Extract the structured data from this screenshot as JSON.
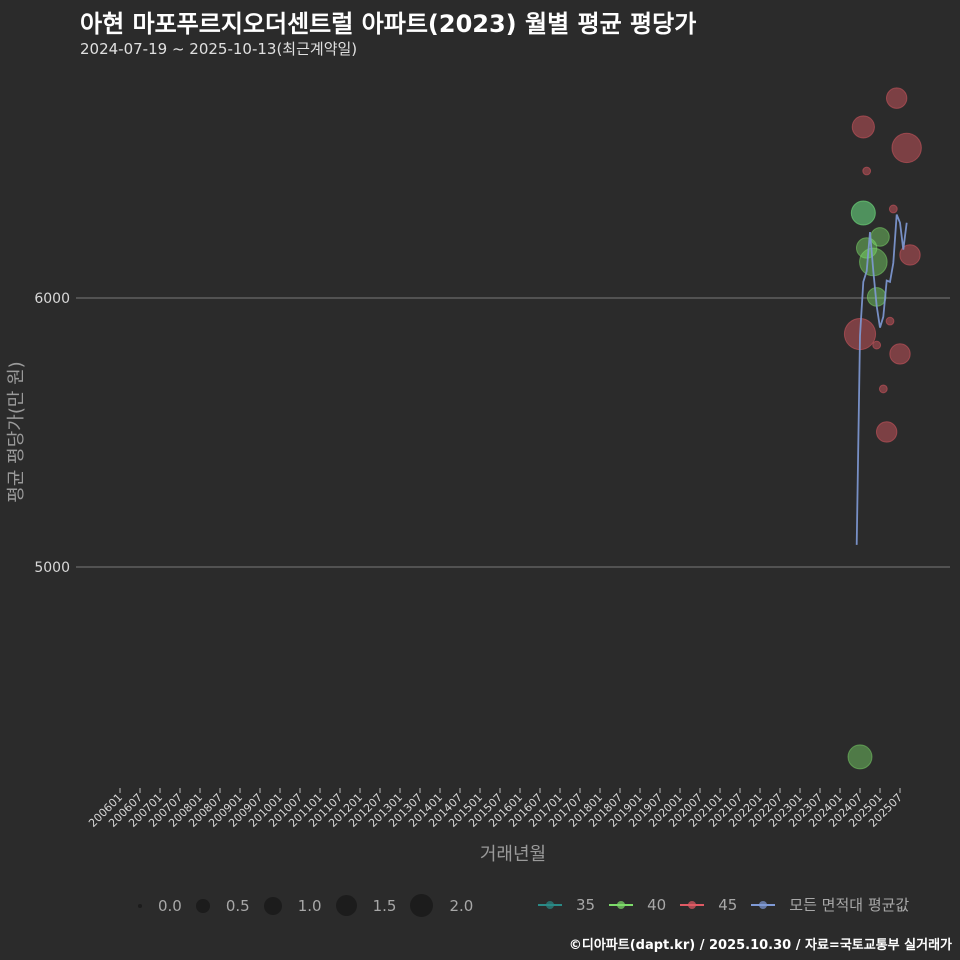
{
  "header": {
    "title": "아현 마포푸르지오더센트럴 아파트(2023) 월별 평균 평당가",
    "subtitle": "2024-07-19 ~ 2025-10-13(최근계약일)"
  },
  "axes": {
    "xlabel": "거래년월",
    "ylabel": "평균 평당가(만 원)"
  },
  "legend": {
    "size": [
      {
        "label": "0.0",
        "diameter": 4
      },
      {
        "label": "0.5",
        "diameter": 14
      },
      {
        "label": "1.0",
        "diameter": 18
      },
      {
        "label": "1.5",
        "diameter": 21
      },
      {
        "label": "2.0",
        "diameter": 23
      }
    ],
    "color": [
      {
        "label": "35",
        "color": "#2a8a86"
      },
      {
        "label": "40",
        "color": "#7ddc6a"
      },
      {
        "label": "45",
        "color": "#e05a64"
      },
      {
        "label": "모든 면적대 평균값",
        "color": "#7f9ad6"
      }
    ]
  },
  "footer": {
    "text": "©디아파트(dapt.kr) / 2025.10.30 / 자료=국토교통부 실거래가"
  },
  "chart_data": {
    "type": "scatter",
    "title": "아현 마포푸르지오더센트럴 아파트(2023) 월별 평균 평당가",
    "subtitle": "2024-07-19 ~ 2025-10-13(최근계약일)",
    "xlabel": "거래년월",
    "ylabel": "평균 평당가(만 원)",
    "x_ticks": [
      "200601",
      "200607",
      "200701",
      "200707",
      "200801",
      "200807",
      "200901",
      "200907",
      "201001",
      "201007",
      "201101",
      "201107",
      "201201",
      "201207",
      "201301",
      "201307",
      "201401",
      "201407",
      "201501",
      "201507",
      "201601",
      "201607",
      "201701",
      "201707",
      "201801",
      "201807",
      "201901",
      "201907",
      "202001",
      "202007",
      "202101",
      "202107",
      "202201",
      "202207",
      "202301",
      "202307",
      "202401",
      "202407",
      "202501",
      "202507"
    ],
    "y_ticks": [
      5000,
      6000
    ],
    "ylim": [
      4100,
      6870
    ],
    "grid": "horizontal",
    "legend_position": "bottom",
    "series": [
      {
        "name": "35",
        "color": "#2a8a86",
        "points": [
          {
            "x": "202408",
            "y": 6316,
            "size": 1.0
          }
        ]
      },
      {
        "name": "40",
        "color": "#7ddc6a",
        "points": [
          {
            "x": "202407",
            "y": 4294,
            "size": 1.0
          },
          {
            "x": "202408",
            "y": 6316,
            "size": 1.0
          },
          {
            "x": "202409",
            "y": 6186,
            "size": 0.8
          },
          {
            "x": "202411",
            "y": 6134,
            "size": 1.2
          },
          {
            "x": "202412",
            "y": 6004,
            "size": 0.7
          },
          {
            "x": "202501",
            "y": 6227,
            "size": 0.7
          }
        ]
      },
      {
        "name": "45",
        "color": "#e05a64",
        "points": [
          {
            "x": "202407",
            "y": 5866,
            "size": 1.4
          },
          {
            "x": "202408",
            "y": 6636,
            "size": 0.9
          },
          {
            "x": "202409",
            "y": 6472,
            "size": 0.1
          },
          {
            "x": "202412",
            "y": 5825,
            "size": 0.1
          },
          {
            "x": "202502",
            "y": 5662,
            "size": 0.1
          },
          {
            "x": "202503",
            "y": 5502,
            "size": 0.8
          },
          {
            "x": "202504",
            "y": 5914,
            "size": 0.1
          },
          {
            "x": "202505",
            "y": 6331,
            "size": 0.1
          },
          {
            "x": "202506",
            "y": 6743,
            "size": 0.8
          },
          {
            "x": "202507",
            "y": 5792,
            "size": 0.8
          },
          {
            "x": "202509",
            "y": 6558,
            "size": 1.3
          },
          {
            "x": "202510",
            "y": 6160,
            "size": 0.8
          }
        ]
      },
      {
        "name": "모든 면적대 평균값",
        "color": "#7f9ad6",
        "type": "line",
        "points": [
          {
            "x": "202406",
            "y": 5082
          },
          {
            "x": "202407",
            "y": 5860
          },
          {
            "x": "202408",
            "y": 6060
          },
          {
            "x": "202409",
            "y": 6100
          },
          {
            "x": "202410",
            "y": 6245
          },
          {
            "x": "202411",
            "y": 6100
          },
          {
            "x": "202412",
            "y": 5970
          },
          {
            "x": "202501",
            "y": 5890
          },
          {
            "x": "202502",
            "y": 5930
          },
          {
            "x": "202503",
            "y": 6065
          },
          {
            "x": "202504",
            "y": 6060
          },
          {
            "x": "202505",
            "y": 6130
          },
          {
            "x": "202506",
            "y": 6310
          },
          {
            "x": "202507",
            "y": 6280
          },
          {
            "x": "202508",
            "y": 6180
          },
          {
            "x": "202509",
            "y": 6280
          }
        ]
      }
    ]
  }
}
